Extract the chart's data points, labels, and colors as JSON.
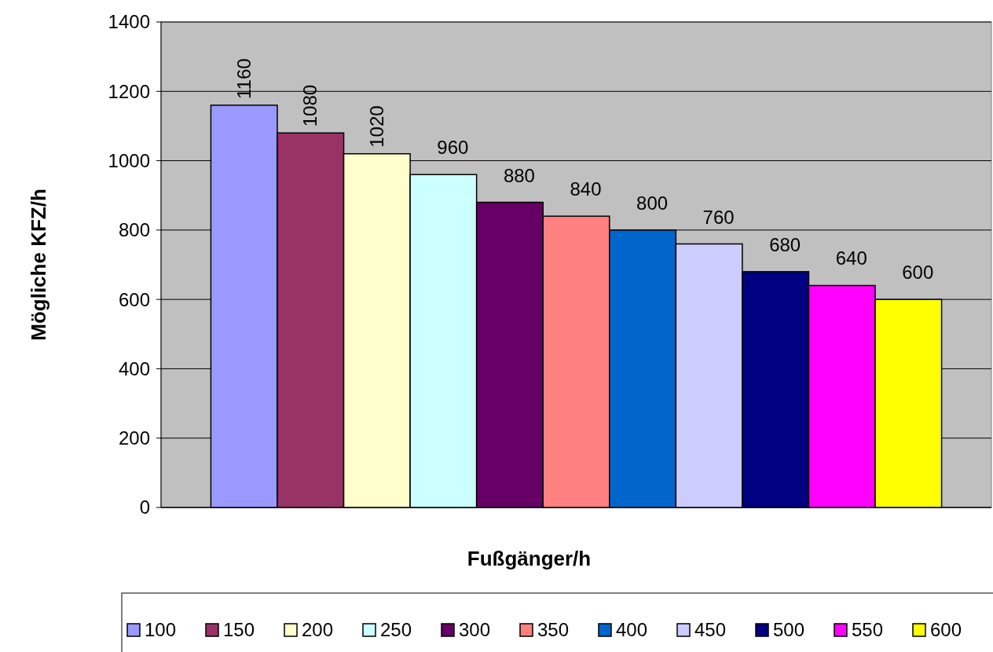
{
  "chart_data": {
    "type": "bar",
    "xlabel": "Fußgänger/h",
    "ylabel": "Mögliche KFZ/h",
    "categories": [
      null
    ],
    "ylim": [
      0,
      1400
    ],
    "yticks": [
      0,
      200,
      400,
      600,
      800,
      1000,
      1200,
      1400
    ],
    "grid": "y",
    "legend": "bottom",
    "data_labels": true,
    "series": [
      {
        "name": "100",
        "color": "#9999ff",
        "values": [
          1160
        ]
      },
      {
        "name": "150",
        "color": "#993366",
        "values": [
          1080
        ]
      },
      {
        "name": "200",
        "color": "#ffffcc",
        "values": [
          1020
        ]
      },
      {
        "name": "250",
        "color": "#ccffff",
        "values": [
          960
        ]
      },
      {
        "name": "300",
        "color": "#660066",
        "values": [
          880
        ]
      },
      {
        "name": "350",
        "color": "#ff8080",
        "values": [
          840
        ]
      },
      {
        "name": "400",
        "color": "#0066cc",
        "values": [
          800
        ]
      },
      {
        "name": "450",
        "color": "#ccccff",
        "values": [
          760
        ]
      },
      {
        "name": "500",
        "color": "#000080",
        "values": [
          680
        ]
      },
      {
        "name": "550",
        "color": "#ff00ff",
        "values": [
          640
        ]
      },
      {
        "name": "600",
        "color": "#ffff00",
        "values": [
          600
        ]
      }
    ]
  }
}
